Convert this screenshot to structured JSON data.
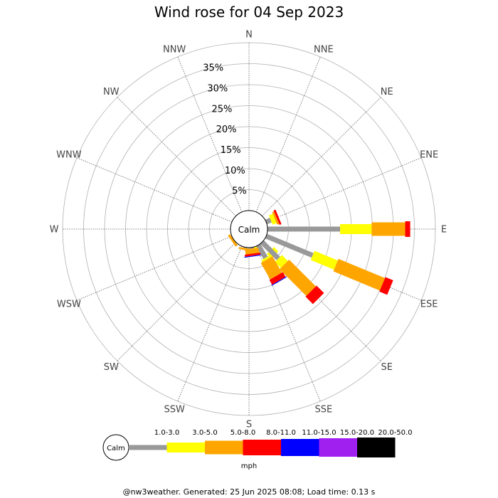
{
  "chart_data": {
    "type": "windrose",
    "title": "Wind rose for 04 Sep 2023",
    "directions": [
      "N",
      "NNE",
      "NE",
      "ENE",
      "E",
      "ESE",
      "SE",
      "SSE",
      "S",
      "SSW",
      "SW",
      "WSW",
      "W",
      "WNW",
      "NW",
      "NNW"
    ],
    "ring_labels": [
      "5%",
      "10%",
      "15%",
      "20%",
      "25%",
      "30%",
      "35%"
    ],
    "ring_values": [
      5,
      10,
      15,
      20,
      25,
      30,
      35
    ],
    "rmax": 40,
    "calm_label": "Calm",
    "speed_bins": [
      {
        "label": "1.0-3.0",
        "color": "#999999"
      },
      {
        "label": "3.0-5.0",
        "color": "#ffff00"
      },
      {
        "label": "5.0-8.0",
        "color": "#ffa500"
      },
      {
        "label": "8.0-11.0",
        "color": "#ff0000"
      },
      {
        "label": "11.0-15.0",
        "color": "#0000ff"
      },
      {
        "label": "15.0-20.0",
        "color": "#a020f0"
      },
      {
        "label": "20.0-50.0",
        "color": "#000000"
      }
    ],
    "units": "mph",
    "data": {
      "N": [
        0,
        0,
        0,
        0,
        0,
        0,
        0
      ],
      "NNE": [
        0,
        0,
        0,
        0,
        0,
        0,
        0
      ],
      "NE": [
        0,
        0,
        0,
        0,
        0,
        0,
        0
      ],
      "ENE": [
        1.2,
        1.0,
        0.5,
        0.5,
        0,
        0,
        0
      ],
      "E": [
        17.3,
        7.5,
        8.0,
        1.2,
        0,
        0,
        0
      ],
      "ESE": [
        12.0,
        6.0,
        12.0,
        2.0,
        0,
        0,
        0
      ],
      "SE": [
        2.8,
        1.5,
        0,
        0,
        0,
        0,
        0
      ],
      "SSE": [
        0,
        1.8,
        0,
        0,
        0,
        0,
        0
      ],
      "S": [
        0,
        0,
        0,
        0,
        0,
        0,
        0
      ],
      "SSW": [
        0,
        0,
        0,
        0,
        0,
        0,
        0
      ],
      "SW": [
        0,
        0,
        0,
        0,
        0,
        0,
        0
      ],
      "WSW": [
        0,
        0,
        0,
        0,
        0,
        0,
        0
      ],
      "W": [
        0,
        0,
        0,
        0,
        0,
        0,
        0
      ],
      "WNW": [
        0,
        0,
        0,
        0,
        0,
        0,
        0
      ],
      "NW": [
        0,
        0,
        0,
        0,
        0,
        0,
        0
      ],
      "NNW": [
        0,
        0,
        0,
        0,
        0,
        0,
        0
      ]
    },
    "extra_petals": [
      {
        "angle": 135,
        "segments": [
          5.5,
          2.0,
          9.0,
          2.5,
          0,
          0,
          0
        ]
      },
      {
        "angle": 150,
        "segments": [
          3.5,
          0.5,
          4.5,
          1.3,
          0.2,
          0,
          0
        ]
      },
      {
        "angle": 172,
        "segments": [
          0.3,
          0,
          1.2,
          0.5,
          0.2,
          0,
          0
        ]
      },
      {
        "angle": 190,
        "segments": [
          0.2,
          0,
          0.5,
          0,
          0,
          0,
          0
        ]
      },
      {
        "angle": 235,
        "segments": [
          0,
          0,
          0.6,
          0,
          0,
          0,
          0
        ]
      }
    ]
  },
  "footer": "@nw3weather. Generated: 25 Jun 2025 08:08; Load time: 0.13 s"
}
